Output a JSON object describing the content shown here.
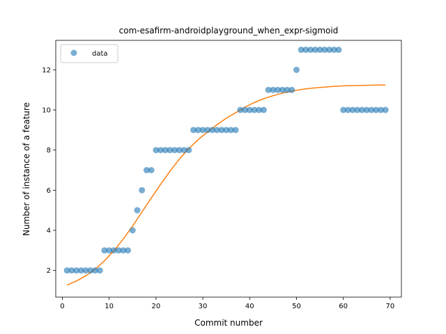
{
  "chart_data": {
    "type": "scatter",
    "title": "com-esafirm-androidplayground_when_expr-sigmoid",
    "xlabel": "Commit number",
    "ylabel": "Number of instance of a feature",
    "xlim": [
      -1.4,
      72.4
    ],
    "ylim": [
      0.67,
      13.47
    ],
    "xticks": [
      0,
      10,
      20,
      30,
      40,
      50,
      60,
      70
    ],
    "yticks": [
      2,
      4,
      6,
      8,
      10,
      12
    ],
    "legend_position": "upper-left",
    "colors": {
      "data": "#1f77b4",
      "fit": "#ff7f0e"
    },
    "series": [
      {
        "name": "data",
        "kind": "scatter",
        "x": [
          1,
          2,
          3,
          4,
          5,
          6,
          7,
          8,
          9,
          10,
          11,
          12,
          13,
          14,
          15,
          16,
          17,
          18,
          19,
          20,
          21,
          22,
          23,
          24,
          25,
          26,
          27,
          28,
          29,
          30,
          31,
          32,
          33,
          34,
          35,
          36,
          37,
          38,
          39,
          40,
          41,
          42,
          43,
          44,
          45,
          46,
          47,
          48,
          49,
          50,
          51,
          52,
          53,
          54,
          55,
          56,
          57,
          58,
          59,
          60,
          61,
          62,
          63,
          64,
          65,
          66,
          67,
          68,
          69
        ],
        "y": [
          2,
          2,
          2,
          2,
          2,
          2,
          2,
          2,
          3,
          3,
          3,
          3,
          3,
          3,
          4,
          5,
          6,
          7,
          7,
          8,
          8,
          8,
          8,
          8,
          8,
          8,
          8,
          9,
          9,
          9,
          9,
          9,
          9,
          9,
          9,
          9,
          9,
          10,
          10,
          10,
          10,
          10,
          10,
          11,
          11,
          11,
          11,
          11,
          11,
          12,
          13,
          13,
          13,
          13,
          13,
          13,
          13,
          13,
          13,
          10,
          10,
          10,
          10,
          10,
          10,
          10,
          10,
          10,
          10
        ]
      },
      {
        "kind": "line",
        "x": [
          1,
          3,
          5,
          7,
          9,
          11,
          13,
          15,
          17,
          19,
          21,
          23,
          25,
          27,
          29,
          31,
          33,
          35,
          37,
          39,
          41,
          43,
          45,
          47,
          49,
          51,
          53,
          55,
          57,
          59,
          61,
          63,
          65,
          67,
          69
        ],
        "y": [
          1.27,
          1.47,
          1.73,
          2.06,
          2.48,
          2.98,
          3.56,
          4.21,
          4.91,
          5.61,
          6.3,
          6.95,
          7.55,
          8.07,
          8.52,
          8.9,
          9.26,
          9.59,
          9.86,
          10.14,
          10.37,
          10.56,
          10.71,
          10.84,
          10.94,
          11.02,
          11.08,
          11.12,
          11.16,
          11.19,
          11.21,
          11.22,
          11.23,
          11.24,
          11.25
        ]
      }
    ]
  }
}
